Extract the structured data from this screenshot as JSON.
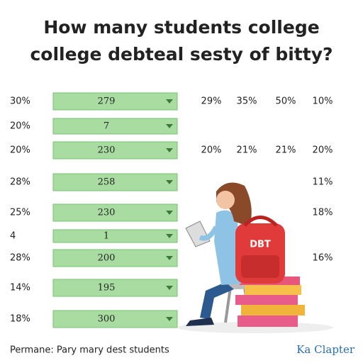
{
  "header": {
    "title_lines": [
      "How many students college",
      "college debteal sesty of bitty?"
    ]
  },
  "rows": [
    {
      "label": "30%",
      "bar": "279",
      "values": [
        "29%",
        "35%",
        "50%",
        "10%"
      ]
    },
    {
      "label": "20%",
      "bar": "7"
    },
    {
      "label": "20%",
      "bar": "230",
      "values": [
        "20%",
        "21%",
        "21%",
        "20%"
      ]
    },
    {
      "label": "28%",
      "bar": "258",
      "values": [
        "11%"
      ]
    },
    {
      "label": "25%",
      "bar": "230",
      "values": [
        "18%"
      ]
    },
    {
      "label": "4",
      "bar": "1"
    },
    {
      "label": "28%",
      "bar": "200",
      "values": [
        "16%"
      ]
    },
    {
      "label": "14%",
      "bar": "195"
    },
    {
      "label": "18%",
      "bar": "300"
    }
  ],
  "illustration": {
    "backpack_text": "DBT"
  },
  "footer": {
    "caption": "Permane: Pary mary dest students",
    "brand": "Ka Clapter"
  }
}
